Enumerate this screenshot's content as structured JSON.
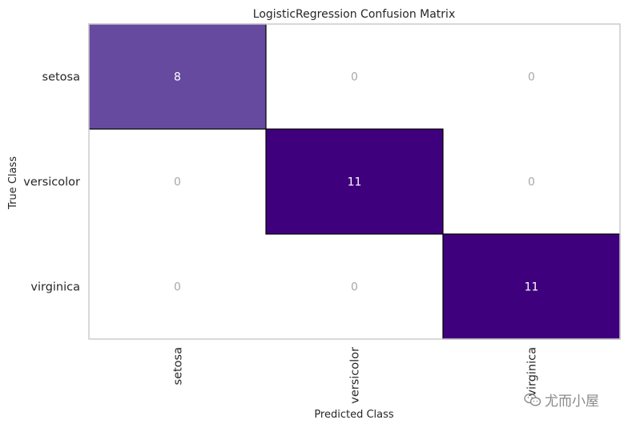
{
  "chart_data": {
    "type": "heatmap",
    "title": "LogisticRegression Confusion Matrix",
    "xlabel": "Predicted Class",
    "ylabel": "True Class",
    "row_labels": [
      "setosa",
      "versicolor",
      "virginica"
    ],
    "col_labels": [
      "setosa",
      "versicolor",
      "virginica"
    ],
    "matrix": [
      [
        8,
        0,
        0
      ],
      [
        0,
        11,
        0
      ],
      [
        0,
        0,
        11
      ]
    ],
    "colors": {
      "zero": "#ffffff",
      "max": "#3f007d",
      "mid": "#6a51a3",
      "zero_text": "#a8a8a8",
      "filled_text": "#ffffff"
    }
  },
  "watermark": {
    "text": "尤而小屋",
    "icon": "wechat-icon"
  }
}
